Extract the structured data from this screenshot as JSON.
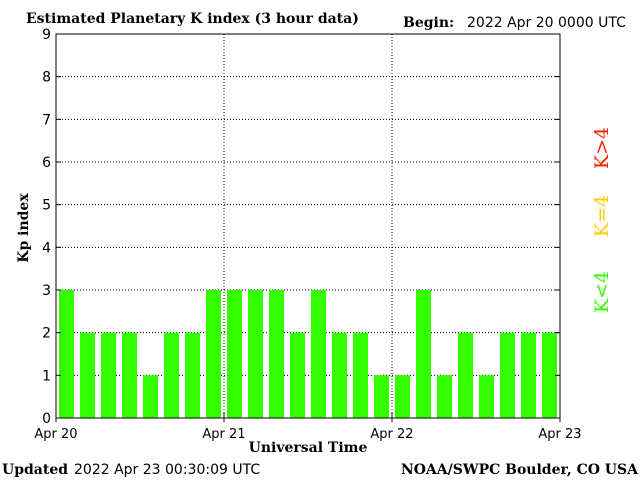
{
  "header": {
    "title": "Estimated Planetary K index (3 hour data)",
    "begin_label": "Begin:",
    "begin_value": "2022 Apr 20 0000 UTC"
  },
  "footer": {
    "updated_label": "Updated",
    "updated_value": "2022 Apr 23 00:30:09 UTC",
    "source": "NOAA/SWPC Boulder, CO USA"
  },
  "legend": {
    "items": [
      {
        "label": "K<4",
        "color": "#33ff00"
      },
      {
        "label": "K=4",
        "color": "#ffcc00"
      },
      {
        "label": "K>4",
        "color": "#ff2200"
      }
    ]
  },
  "colors": {
    "bar": "#33ff00",
    "grid": "#000000",
    "axis": "#000000"
  },
  "chart_data": {
    "type": "bar",
    "title": "Estimated Planetary K index (3 hour data)",
    "xlabel": "Universal Time",
    "ylabel": "Kp index",
    "ylim": [
      0,
      9
    ],
    "y_ticks": [
      "0",
      "1",
      "2",
      "3",
      "4",
      "5",
      "6",
      "7",
      "8",
      "9"
    ],
    "x_ticks": [
      "Apr 20",
      "Apr 21",
      "Apr 22",
      "Apr 23"
    ],
    "grid": true,
    "values": [
      3,
      2,
      2,
      2,
      1,
      2,
      2,
      3,
      3,
      3,
      3,
      2,
      3,
      2,
      2,
      1,
      1,
      3,
      1,
      2,
      1,
      2,
      2,
      2
    ]
  }
}
